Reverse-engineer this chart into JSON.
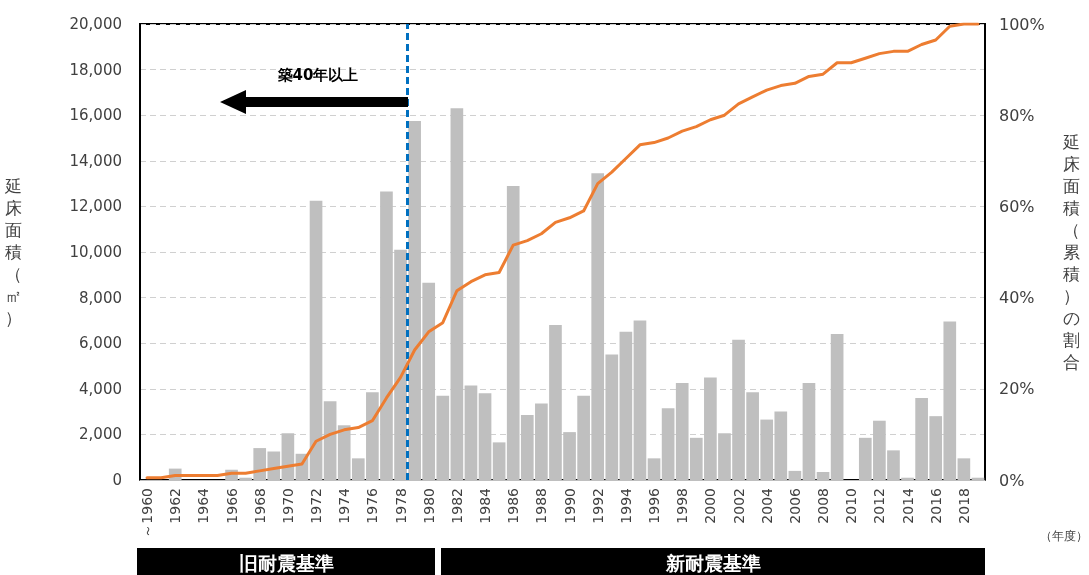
{
  "chart_data": {
    "type": "bar",
    "xlabel": "（年度）",
    "ylabel": "延床面積（㎡）",
    "y2label": "延床面積（累積）の割合",
    "x": [
      1960,
      1961,
      1962,
      1963,
      1964,
      1965,
      1966,
      1967,
      1968,
      1969,
      1970,
      1971,
      1972,
      1973,
      1974,
      1975,
      1976,
      1977,
      1978,
      1979,
      1980,
      1981,
      1982,
      1983,
      1984,
      1985,
      1986,
      1987,
      1988,
      1989,
      1990,
      1991,
      1992,
      1993,
      1994,
      1995,
      1996,
      1997,
      1998,
      1999,
      2000,
      2001,
      2002,
      2003,
      2004,
      2005,
      2006,
      2007,
      2008,
      2009,
      2010,
      2011,
      2012,
      2013,
      2014,
      2015,
      2016,
      2017,
      2018,
      2019
    ],
    "series": [
      {
        "type": "bar",
        "color": "#bfbfbf",
        "values": [
          null,
          0,
          500,
          0,
          0,
          0,
          450,
          100,
          1400,
          1250,
          2050,
          1150,
          12250,
          3450,
          2400,
          950,
          3850,
          12650,
          10100,
          15750,
          8650,
          3700,
          16300,
          4150,
          3800,
          1650,
          12900,
          2850,
          3350,
          6800,
          2100,
          3700,
          13450,
          5500,
          6500,
          7000,
          950,
          3150,
          4250,
          1850,
          4500,
          2050,
          6150,
          3850,
          2650,
          3000,
          400,
          4250,
          350,
          6400,
          null,
          1850,
          2600,
          1300,
          100,
          3600,
          2800,
          6950,
          950,
          100
        ]
      },
      {
        "type": "line",
        "axis": "y2",
        "color": "#ed7d31",
        "values": [
          0.5,
          0.5,
          1,
          1,
          1,
          1,
          1.5,
          1.5,
          2,
          2.5,
          3,
          3.5,
          8.5,
          10,
          11,
          11.5,
          13,
          18,
          22.5,
          28.5,
          32.5,
          34.5,
          41.5,
          43.5,
          45,
          45.5,
          51.5,
          52.5,
          54,
          56.5,
          57.5,
          59,
          65,
          67.5,
          70.5,
          73.5,
          74,
          75,
          76.5,
          77.5,
          79,
          80,
          82.5,
          84,
          85.5,
          86.5,
          87,
          88.5,
          89,
          91.5,
          91.5,
          92.5,
          93.5,
          94,
          94,
          95.5,
          96.5,
          99.5,
          100,
          100
        ]
      }
    ],
    "xlim": [
      1959.5,
      2019.5
    ],
    "xticks": [
      {
        "value": 1960,
        "label": "～1960"
      },
      1962,
      1964,
      1966,
      1968,
      1970,
      1972,
      1974,
      1976,
      1978,
      1980,
      1982,
      1984,
      1986,
      1988,
      1990,
      1992,
      1994,
      1996,
      1998,
      2000,
      2002,
      2004,
      2006,
      2008,
      2010,
      2012,
      2014,
      2016,
      2018
    ],
    "ylim": [
      0,
      20000
    ],
    "yticks": [
      {
        "value": 0,
        "label": "0"
      },
      {
        "value": 2000,
        "label": "2,000"
      },
      {
        "value": 4000,
        "label": "4,000"
      },
      {
        "value": 6000,
        "label": "6,000"
      },
      {
        "value": 8000,
        "label": "8,000"
      },
      {
        "value": 10000,
        "label": "10,000"
      },
      {
        "value": 12000,
        "label": "12,000"
      },
      {
        "value": 14000,
        "label": "14,000"
      },
      {
        "value": 16000,
        "label": "16,000"
      },
      {
        "value": 18000,
        "label": "18,000"
      },
      {
        "value": 20000,
        "label": "20,000"
      }
    ],
    "y2lim": [
      0,
      100
    ],
    "y2ticks": [
      {
        "value": 0,
        "label": "0%"
      },
      {
        "value": 20,
        "label": "20%"
      },
      {
        "value": 40,
        "label": "40%"
      },
      {
        "value": 60,
        "label": "60%"
      },
      {
        "value": 80,
        "label": "80%"
      },
      {
        "value": 100,
        "label": "100%"
      }
    ],
    "ref_lines": [
      {
        "axis": "x",
        "value": 1978.5,
        "color": "#0070c0",
        "line_style": "dashed"
      }
    ],
    "annotations": [
      "築40年以上",
      "旧耐震基準",
      "新耐震基準"
    ],
    "grid": "y",
    "marker": "none",
    "line_style": "solid"
  }
}
